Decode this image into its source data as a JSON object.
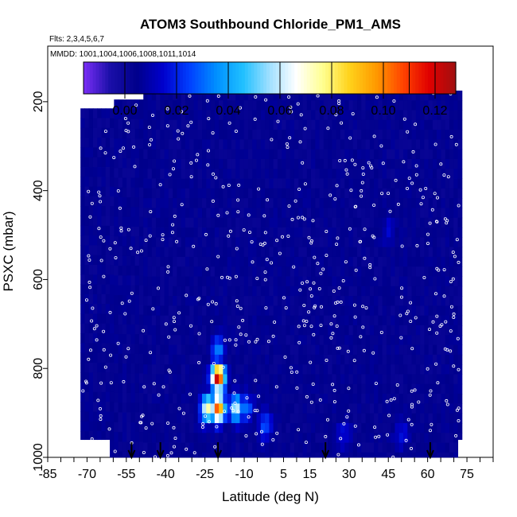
{
  "chart_data": {
    "type": "heatmap",
    "title": "ATOM3 Southbound Chloride_PM1_AMS",
    "subtitle_flights": "Flts: 2,3,4,5,6,7",
    "subtitle_dates": "MMDD: 1001,1004,1006,1008,1011,1014",
    "xlabel": "Latitude (deg N)",
    "ylabel": "PSXC (mbar)",
    "xlim": [
      -85,
      85
    ],
    "ylim": [
      1000,
      75
    ],
    "y_reversed": true,
    "x_tick_labels": [
      "-85",
      "-70",
      "-55",
      "-40",
      "-25",
      "-10",
      "5",
      "15",
      "30",
      "45",
      "60",
      "75"
    ],
    "x_tick_values": [
      -85,
      -70,
      -55,
      -40,
      -25,
      -10,
      5,
      15,
      30,
      45,
      60,
      75
    ],
    "y_tick_labels": [
      "200",
      "400",
      "600",
      "800",
      "1000"
    ],
    "y_tick_values": [
      200,
      400,
      600,
      800,
      1000
    ],
    "colorbar": {
      "range": [
        -0.016,
        0.128
      ],
      "tick_labels": [
        "0.00",
        "0.02",
        "0.04",
        "0.06",
        "0.08",
        "0.10",
        "0.12"
      ],
      "tick_values": [
        0.0,
        0.02,
        0.04,
        0.06,
        0.08,
        0.1,
        0.12
      ],
      "colors": [
        "#7b2ff7",
        "#1a0fa8",
        "#00008b",
        "#0000cd",
        "#0040ff",
        "#0090ff",
        "#20c0ff",
        "#a0e0ff",
        "#ffffff",
        "#ffff90",
        "#ffd21a",
        "#ff9a00",
        "#ff4400",
        "#e00000",
        "#a01010"
      ]
    },
    "background_value": 0.004,
    "hotspots": [
      {
        "lat": -20,
        "p": 820,
        "value": 0.125
      },
      {
        "lat": -20,
        "p": 890,
        "value": 0.11
      },
      {
        "lat": -24,
        "p": 890,
        "value": 0.075
      },
      {
        "lat": -13,
        "p": 890,
        "value": 0.06
      },
      {
        "lat": -20,
        "p": 760,
        "value": 0.035
      },
      {
        "lat": -9,
        "p": 890,
        "value": 0.03
      },
      {
        "lat": -2,
        "p": 930,
        "value": 0.028
      },
      {
        "lat": 50,
        "p": 950,
        "value": 0.02
      },
      {
        "lat": 45,
        "p": 490,
        "value": 0.015
      },
      {
        "lat": 28,
        "p": 950,
        "value": 0.018
      }
    ],
    "arrow_latitudes": [
      -53,
      -42,
      -20,
      21,
      61
    ],
    "marker_color": "#ffffff"
  }
}
